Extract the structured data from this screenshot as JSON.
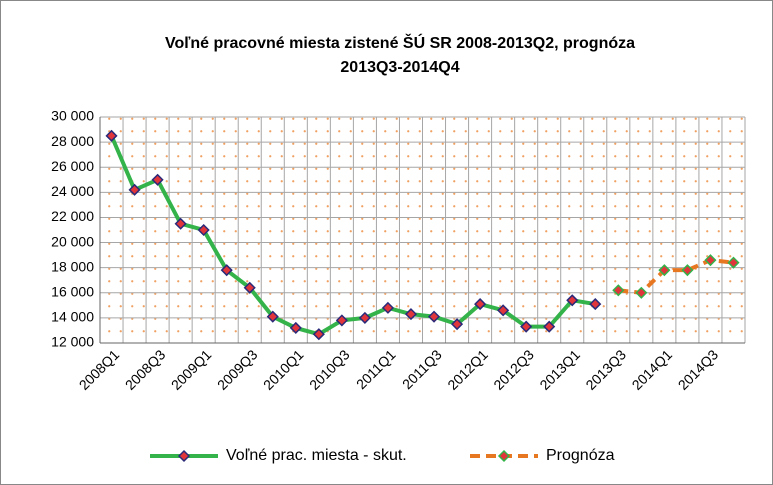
{
  "chart_data": {
    "type": "line",
    "title": [
      "Voľné pracovné miesta zistené ŠÚ SR 2008-2013Q2,  prognóza",
      "2013Q3-2014Q4"
    ],
    "categories": [
      "2008Q1",
      null,
      "2008Q3",
      null,
      "2009Q1",
      null,
      "2009Q3",
      null,
      "2010Q1",
      null,
      "2010Q3",
      null,
      "2011Q1",
      null,
      "2011Q3",
      null,
      "2012Q1",
      null,
      "2012Q3",
      null,
      "2013Q1",
      null,
      "2013Q3",
      null,
      "2014Q1",
      null,
      "2014Q3",
      null
    ],
    "series": [
      {
        "name": "Voľné prac. miesta - skut.",
        "color": "#33b34a",
        "marker_color": "#e0353a",
        "marker_edge": "#2a2a7a",
        "dashed": false,
        "values": [
          28500,
          24200,
          25000,
          21500,
          21000,
          17800,
          16400,
          14100,
          13200,
          12700,
          13800,
          14000,
          14800,
          14300,
          14100,
          13500,
          15100,
          14600,
          13300,
          13300,
          15400,
          15100,
          null,
          null,
          null,
          null,
          null,
          null
        ]
      },
      {
        "name": "Prognóza",
        "color": "#e87722",
        "marker_color": "#e0353a",
        "marker_edge": "#33b34a",
        "dashed": true,
        "values": [
          null,
          null,
          null,
          null,
          null,
          null,
          null,
          null,
          null,
          null,
          null,
          null,
          null,
          null,
          null,
          null,
          null,
          null,
          null,
          null,
          null,
          null,
          16200,
          16000,
          17800,
          17800,
          18600,
          18400
        ]
      }
    ],
    "ylim": [
      12000,
      30000
    ],
    "yticks": [
      {
        "value": 12000,
        "label": "12 000"
      },
      {
        "value": 14000,
        "label": "14 000"
      },
      {
        "value": 16000,
        "label": "16 000"
      },
      {
        "value": 18000,
        "label": "18 000"
      },
      {
        "value": 20000,
        "label": "20 000"
      },
      {
        "value": 22000,
        "label": "22 000"
      },
      {
        "value": 24000,
        "label": "24 000"
      },
      {
        "value": 26000,
        "label": "26 000"
      },
      {
        "value": 28000,
        "label": "28 000"
      },
      {
        "value": 30000,
        "label": "30 000"
      }
    ],
    "grid": true
  }
}
